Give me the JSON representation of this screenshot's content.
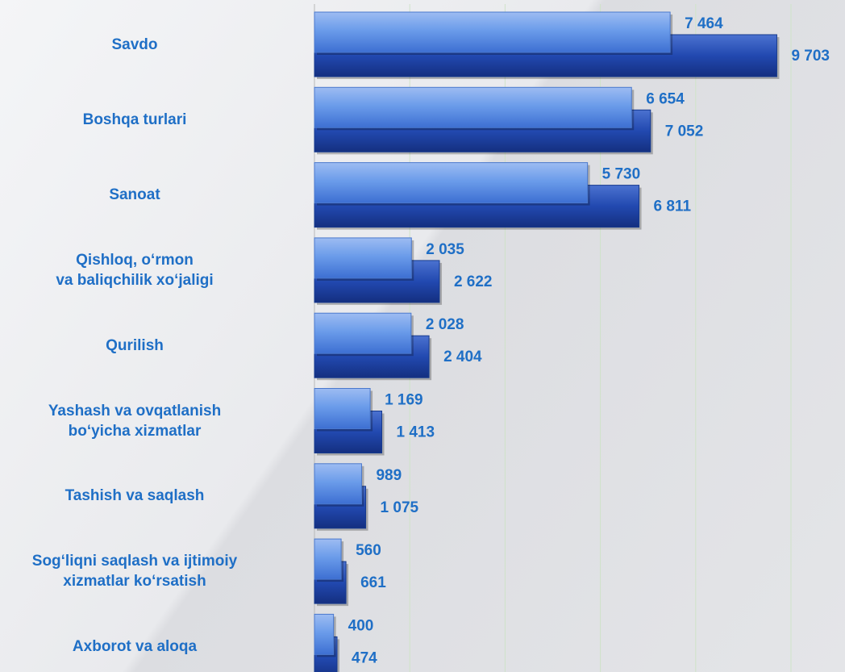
{
  "chart_data": {
    "type": "hbar",
    "categories": [
      "Savdo",
      "Boshqa turlari",
      "Sanoat",
      "Qishloq, o‘rmon\nva baliqchilik xo‘jaligi",
      "Qurilish",
      "Yashash va ovqatlanish\nbo‘yicha xizmatlar",
      "Tashish va saqlash",
      "Sog‘liqni saqlash va ijtimoiy\nxizmatlar ko‘rsatish",
      "Axborot va aloqa"
    ],
    "series": [
      {
        "color": "#5a8ee6",
        "values": [
          7464,
          6654,
          5730,
          2035,
          2028,
          1169,
          989,
          560,
          400
        ],
        "value_labels": [
          "7 464",
          "6 654",
          "5 730",
          "2 035",
          "2 028",
          "1 169",
          "989",
          "560",
          "400"
        ]
      },
      {
        "color": "#2249b0",
        "values": [
          9703,
          7052,
          6811,
          2622,
          2404,
          1413,
          1075,
          661,
          474
        ],
        "value_labels": [
          "9 703",
          "7 052",
          "6 811",
          "2 622",
          "2 404",
          "1 413",
          "1 075",
          "661",
          "474"
        ]
      }
    ],
    "xlim": [
      0,
      10000
    ],
    "xticks": [
      0,
      2000,
      4000,
      6000,
      8000,
      10000
    ],
    "grid": true
  }
}
